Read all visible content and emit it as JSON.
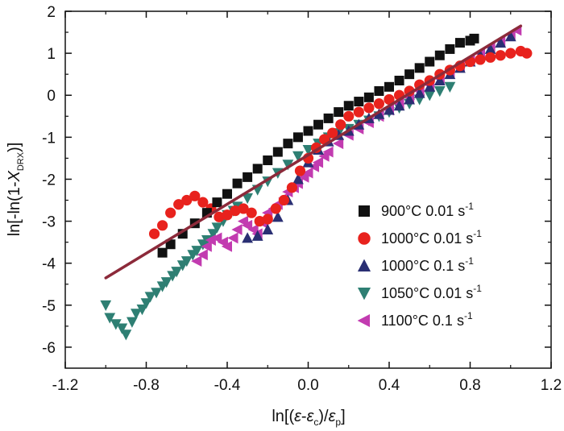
{
  "chart_data": {
    "type": "scatter",
    "xlabel": "ln[(ε-εc)/εp]",
    "ylabel": "ln[-ln(1-XDRX)]",
    "xlim": [
      -1.2,
      1.2
    ],
    "ylim": [
      -6.5,
      2
    ],
    "x_ticks": [
      "-1.2",
      "-0.8",
      "-0.4",
      "0.0",
      "0.4",
      "0.8",
      "1.2"
    ],
    "y_ticks": [
      "2",
      "1",
      "0",
      "-1",
      "-2",
      "-3",
      "-4",
      "-5",
      "-6"
    ],
    "legend_position": "bottom-right",
    "series": [
      {
        "name": "900°C 0.01 s-1",
        "label": "900",
        "unit": "°C 0.01 s",
        "exp": "-1",
        "marker": "square",
        "color": "#111111",
        "x": [
          -0.72,
          -0.68,
          -0.62,
          -0.56,
          -0.5,
          -0.45,
          -0.4,
          -0.35,
          -0.3,
          -0.25,
          -0.2,
          -0.15,
          -0.1,
          -0.05,
          0.0,
          0.05,
          0.1,
          0.15,
          0.2,
          0.25,
          0.3,
          0.35,
          0.4,
          0.45,
          0.5,
          0.55,
          0.6,
          0.65,
          0.7,
          0.75,
          0.8,
          0.82
        ],
        "y": [
          -3.75,
          -3.55,
          -3.3,
          -3.05,
          -2.8,
          -2.55,
          -2.35,
          -2.1,
          -1.95,
          -1.75,
          -1.55,
          -1.35,
          -1.15,
          -1.0,
          -0.85,
          -0.7,
          -0.55,
          -0.4,
          -0.25,
          -0.15,
          -0.05,
          0.1,
          0.2,
          0.35,
          0.5,
          0.65,
          0.8,
          0.95,
          1.1,
          1.25,
          1.3,
          1.35
        ]
      },
      {
        "name": "1000°C 0.01 s-1",
        "label": "1000",
        "unit": "°C 0.01 s",
        "exp": "-1",
        "marker": "circle",
        "color": "#e8221d",
        "x": [
          -0.76,
          -0.72,
          -0.68,
          -0.64,
          -0.6,
          -0.56,
          -0.52,
          -0.48,
          -0.44,
          -0.4,
          -0.36,
          -0.32,
          -0.28,
          -0.24,
          -0.2,
          -0.16,
          -0.12,
          -0.08,
          -0.04,
          0.0,
          0.04,
          0.08,
          0.12,
          0.16,
          0.2,
          0.25,
          0.3,
          0.35,
          0.4,
          0.45,
          0.5,
          0.55,
          0.6,
          0.65,
          0.7,
          0.75,
          0.8,
          0.85,
          0.9,
          0.95,
          1.0,
          1.05,
          1.08
        ],
        "y": [
          -3.3,
          -3.1,
          -2.8,
          -2.6,
          -2.5,
          -2.4,
          -2.55,
          -2.7,
          -2.9,
          -2.85,
          -2.75,
          -2.7,
          -2.8,
          -3.0,
          -2.95,
          -2.7,
          -2.5,
          -2.2,
          -1.8,
          -1.5,
          -1.25,
          -1.05,
          -0.9,
          -0.7,
          -0.5,
          -0.4,
          -0.3,
          -0.2,
          -0.1,
          0.0,
          0.1,
          0.25,
          0.35,
          0.5,
          0.6,
          0.7,
          0.8,
          0.85,
          0.9,
          0.95,
          1.0,
          1.05,
          1.0
        ]
      },
      {
        "name": "1000°C 0.1 s-1",
        "label": "1000",
        "unit": "°C 0.1 s",
        "exp": "-1",
        "marker": "triangle-up",
        "color": "#2a2f73",
        "x": [
          -0.3,
          -0.25,
          -0.2,
          -0.15,
          -0.1,
          -0.05,
          0.0,
          0.05,
          0.1,
          0.15,
          0.2,
          0.25,
          0.3,
          0.35,
          0.4,
          0.45,
          0.5,
          0.55,
          0.6,
          0.65,
          0.7,
          0.75,
          0.8,
          0.85,
          0.9,
          0.95,
          1.0
        ],
        "y": [
          -3.4,
          -3.35,
          -3.2,
          -2.9,
          -2.5,
          -2.0,
          -1.6,
          -1.3,
          -1.1,
          -0.95,
          -0.85,
          -0.7,
          -0.55,
          -0.45,
          -0.35,
          -0.25,
          -0.1,
          0.05,
          0.2,
          0.35,
          0.5,
          0.65,
          0.8,
          0.95,
          1.1,
          1.25,
          1.4
        ]
      },
      {
        "name": "1050°C 0.01 s-1",
        "label": "1050",
        "unit": "°C 0.01 s",
        "exp": "-1",
        "marker": "triangle-down",
        "color": "#2e7f73",
        "x": [
          -1.0,
          -0.98,
          -0.95,
          -0.92,
          -0.9,
          -0.87,
          -0.85,
          -0.82,
          -0.8,
          -0.78,
          -0.75,
          -0.72,
          -0.7,
          -0.67,
          -0.65,
          -0.62,
          -0.6,
          -0.57,
          -0.55,
          -0.52,
          -0.5,
          -0.47,
          -0.45,
          -0.42,
          -0.4,
          -0.37,
          -0.35,
          -0.3,
          -0.25,
          -0.2,
          -0.15,
          -0.1,
          -0.05,
          0.0,
          0.05,
          0.1,
          0.15,
          0.2,
          0.25,
          0.3,
          0.35,
          0.4,
          0.45,
          0.5,
          0.55,
          0.6,
          0.65,
          0.7
        ],
        "y": [
          -5.0,
          -5.3,
          -5.45,
          -5.55,
          -5.7,
          -5.4,
          -5.2,
          -5.1,
          -4.95,
          -4.8,
          -4.7,
          -4.55,
          -4.45,
          -4.3,
          -4.2,
          -4.05,
          -3.95,
          -3.8,
          -3.7,
          -3.55,
          -3.45,
          -3.3,
          -3.15,
          -3.0,
          -2.85,
          -2.75,
          -2.65,
          -2.45,
          -2.25,
          -2.05,
          -1.85,
          -1.65,
          -1.45,
          -1.3,
          -1.15,
          -1.0,
          -0.9,
          -0.8,
          -0.7,
          -0.6,
          -0.5,
          -0.4,
          -0.3,
          -0.2,
          -0.1,
          0.0,
          0.1,
          0.2
        ]
      },
      {
        "name": "1100°C 0.1 s-1",
        "label": "1100",
        "unit": "°C 0.1 s",
        "exp": "-1",
        "marker": "triangle-left",
        "color": "#c23bb0",
        "x": [
          -0.55,
          -0.52,
          -0.5,
          -0.48,
          -0.45,
          -0.42,
          -0.4,
          -0.37,
          -0.35,
          -0.32,
          -0.3,
          -0.27,
          -0.25,
          -0.22,
          -0.2,
          -0.17,
          -0.15,
          -0.12,
          -0.1,
          -0.07,
          -0.05,
          -0.02,
          0.0,
          0.03,
          0.05,
          0.08,
          0.1,
          0.15,
          0.2,
          0.25,
          0.3,
          0.35,
          0.4,
          0.45,
          0.5,
          0.55,
          0.6,
          0.65,
          0.7,
          0.75,
          0.8,
          0.85,
          0.9,
          0.95,
          1.0,
          1.03
        ],
        "y": [
          -3.95,
          -3.8,
          -3.6,
          -3.45,
          -3.4,
          -3.5,
          -3.6,
          -3.4,
          -3.2,
          -3.0,
          -3.1,
          -3.2,
          -3.3,
          -3.05,
          -2.8,
          -2.7,
          -2.6,
          -2.45,
          -2.3,
          -2.2,
          -2.1,
          -1.95,
          -1.85,
          -1.7,
          -1.6,
          -1.45,
          -1.35,
          -1.15,
          -0.95,
          -0.8,
          -0.65,
          -0.5,
          -0.35,
          -0.2,
          -0.05,
          0.1,
          0.25,
          0.4,
          0.55,
          0.7,
          0.85,
          1.0,
          1.15,
          1.3,
          1.45,
          1.55
        ]
      }
    ],
    "fit_line": {
      "x": [
        -1.0,
        1.05
      ],
      "y": [
        -4.35,
        1.65
      ],
      "color": "#8c2a3a"
    }
  }
}
